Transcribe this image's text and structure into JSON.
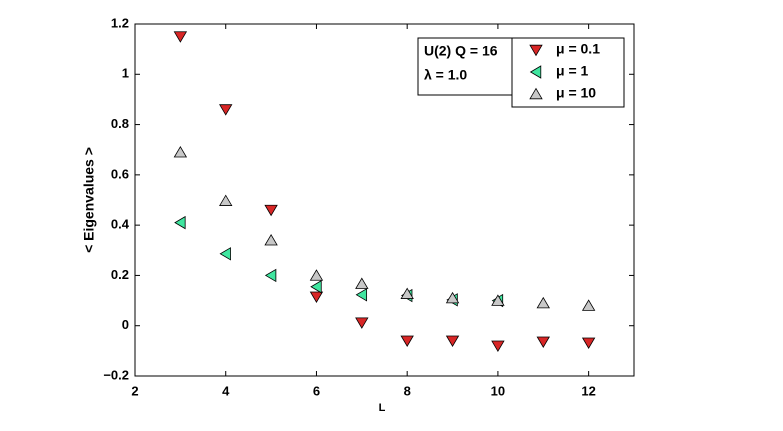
{
  "chart_data": {
    "type": "scatter",
    "xlabel": "L",
    "ylabel": "< Eigenvalues >",
    "annotations": [
      "U(2) Q = 16",
      "λ = 1.0"
    ],
    "legend": "northeast",
    "grid": false,
    "xlim": [
      2,
      13
    ],
    "xticks": [
      2,
      4,
      6,
      8,
      10,
      12
    ],
    "ylim": [
      -0.2,
      1.2
    ],
    "yticks": [
      {
        "value": -0.2,
        "label": "−0.2"
      },
      0,
      0.2,
      0.4,
      0.6,
      0.8,
      1,
      1.2
    ],
    "series": [
      {
        "name": "μ = 0.1",
        "color": "#d82626",
        "marker": "down",
        "x": [
          3,
          4,
          5,
          6,
          7,
          8,
          9,
          10,
          11,
          12
        ],
        "values": [
          1.15,
          0.86,
          0.46,
          0.115,
          0.012,
          -0.06,
          -0.06,
          -0.08,
          -0.064,
          -0.068
        ]
      },
      {
        "name": "μ = 1",
        "color": "#40e6a0",
        "marker": "left",
        "x": [
          3,
          4,
          5,
          6,
          7,
          8,
          9,
          10
        ],
        "values": [
          0.41,
          0.286,
          0.2,
          0.155,
          0.123,
          0.12,
          0.103,
          0.1
        ]
      },
      {
        "name": "μ = 10",
        "color": "#c8c8c8",
        "marker": "up",
        "x": [
          3,
          4,
          5,
          6,
          7,
          8,
          9,
          10,
          11,
          12
        ],
        "values": [
          0.69,
          0.497,
          0.34,
          0.2,
          0.167,
          0.127,
          0.11,
          0.1,
          0.09,
          0.08
        ]
      }
    ]
  }
}
